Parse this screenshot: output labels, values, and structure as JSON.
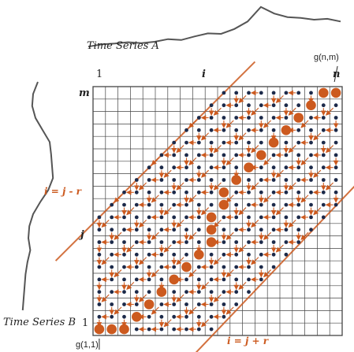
{
  "labels": {
    "series_a": "Time Series A",
    "series_b": "Time Series B",
    "i": "i",
    "j": "j",
    "m": "m",
    "n": "n",
    "one_top": "1",
    "one_left": "1",
    "gnm": "g(n,m)",
    "g11": "g(1,1)",
    "band_upper": "i = j - r",
    "band_lower": "i = j + r"
  },
  "colors": {
    "accent": "#cc5a1f",
    "dot": "#1c2a4a",
    "grid": "#444444",
    "series": "#555555"
  },
  "grid": {
    "cols": 20,
    "rows": 20,
    "band_width_r": 9
  },
  "series_a": [
    0.05,
    0.1,
    0.12,
    0.15,
    0.13,
    0.16,
    0.22,
    0.2,
    0.28,
    0.35,
    0.34,
    0.45,
    0.62,
    0.95,
    0.8,
    0.72,
    0.7,
    0.66,
    0.68,
    0.62
  ],
  "series_b": [
    0.6,
    0.7,
    0.72,
    0.65,
    0.5,
    0.35,
    0.32,
    0.3,
    0.28,
    0.38,
    0.55,
    0.7,
    0.78,
    0.8,
    0.76,
    0.82,
    0.86,
    0.88,
    0.9,
    0.92
  ],
  "warp_path": [
    [
      1,
      1
    ],
    [
      2,
      1
    ],
    [
      3,
      1
    ],
    [
      4,
      2
    ],
    [
      5,
      3
    ],
    [
      6,
      4
    ],
    [
      7,
      5
    ],
    [
      8,
      6
    ],
    [
      9,
      7
    ],
    [
      10,
      8
    ],
    [
      10,
      9
    ],
    [
      10,
      10
    ],
    [
      11,
      11
    ],
    [
      11,
      12
    ],
    [
      12,
      13
    ],
    [
      13,
      14
    ],
    [
      14,
      15
    ],
    [
      15,
      16
    ],
    [
      16,
      17
    ],
    [
      17,
      18
    ],
    [
      18,
      19
    ],
    [
      19,
      20
    ],
    [
      20,
      20
    ]
  ]
}
